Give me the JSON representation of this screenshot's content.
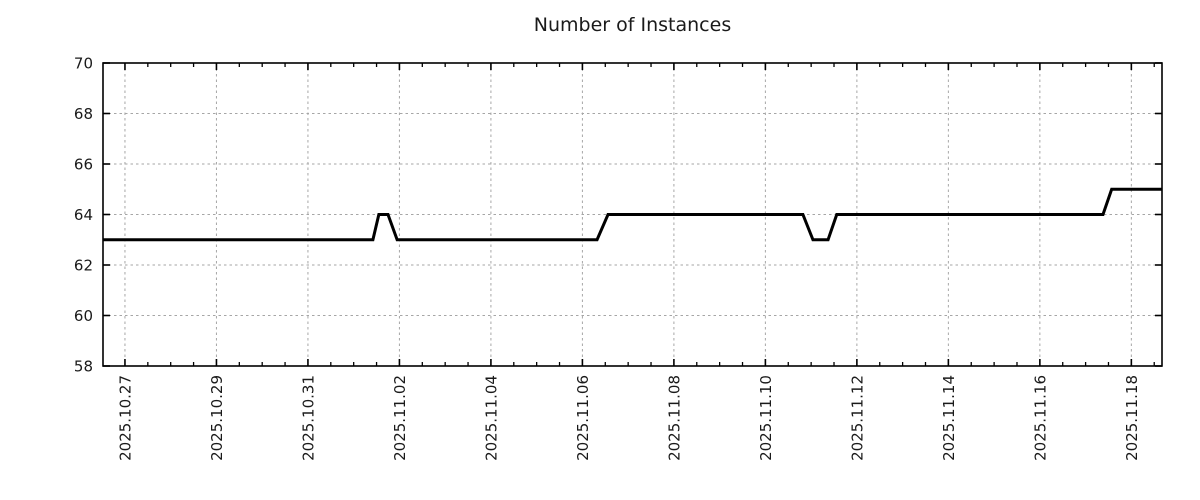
{
  "chart_data": {
    "type": "line",
    "title": "Number of Instances",
    "xlabel": "",
    "ylabel": "",
    "ylim": [
      58,
      70
    ],
    "y_ticks": [
      58,
      60,
      62,
      64,
      66,
      68,
      70
    ],
    "x_domain_days": [
      -0.48,
      22.67
    ],
    "x_epoch": "2025.10.27",
    "x_minor_tick_step_days": 0.5,
    "x_major_tick_step_days": 2,
    "x_ticks": [
      {
        "t": 0,
        "label": "2025.10.27"
      },
      {
        "t": 2,
        "label": "2025.10.29"
      },
      {
        "t": 4,
        "label": "2025.10.31"
      },
      {
        "t": 6,
        "label": "2025.11.02"
      },
      {
        "t": 8,
        "label": "2025.11.04"
      },
      {
        "t": 10,
        "label": "2025.11.06"
      },
      {
        "t": 12,
        "label": "2025.11.08"
      },
      {
        "t": 14,
        "label": "2025.11.10"
      },
      {
        "t": 16,
        "label": "2025.11.12"
      },
      {
        "t": 18,
        "label": "2025.11.14"
      },
      {
        "t": 20,
        "label": "2025.11.16"
      },
      {
        "t": 22,
        "label": "2025.11.18"
      }
    ],
    "grid": true,
    "legend": "none",
    "series": [
      {
        "name": "instances",
        "color": "#000000",
        "line_width": 3,
        "points": [
          [
            -0.48,
            63
          ],
          [
            5.42,
            63
          ],
          [
            5.55,
            64
          ],
          [
            5.75,
            64
          ],
          [
            5.95,
            63
          ],
          [
            10.32,
            63
          ],
          [
            10.56,
            64
          ],
          [
            14.82,
            64
          ],
          [
            15.04,
            63
          ],
          [
            15.37,
            63
          ],
          [
            15.56,
            64
          ],
          [
            21.38,
            64
          ],
          [
            21.57,
            65
          ],
          [
            22.67,
            65
          ]
        ]
      }
    ],
    "colors": {
      "line": "#000000",
      "grid": "#a6a6a6",
      "axis": "#000000",
      "text": "#1a1a1a",
      "background": "#ffffff"
    }
  }
}
